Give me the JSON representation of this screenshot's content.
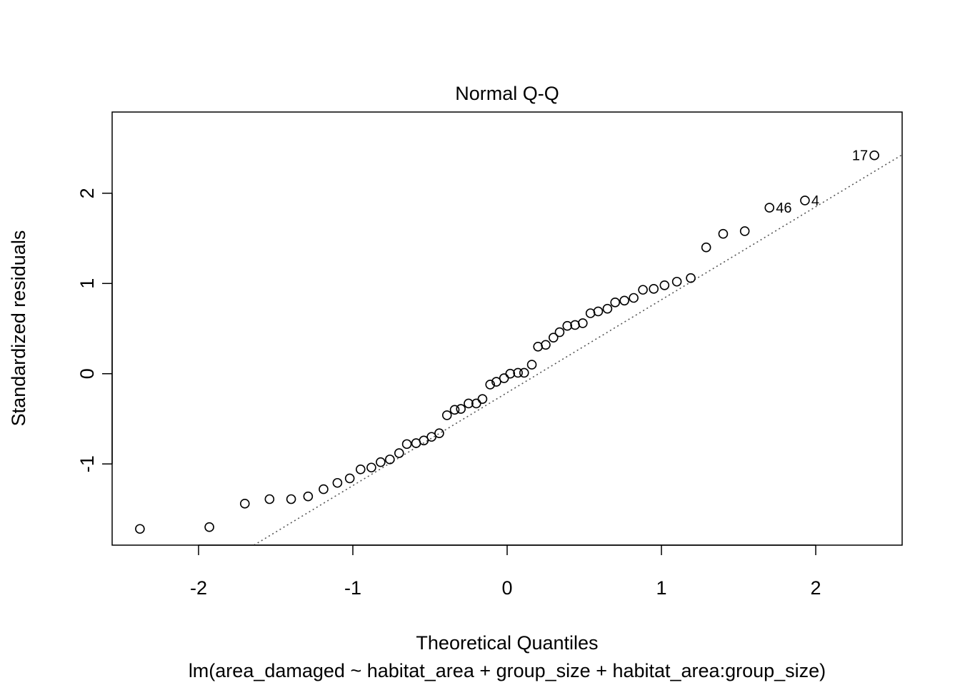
{
  "chart_data": {
    "type": "scatter",
    "title": "Normal Q-Q",
    "xlabel": "Theoretical Quantiles",
    "ylabel": "Standardized residuals",
    "subtitle": "lm(area_damaged ~ habitat_area + group_size + habitat_area:group_size)",
    "xlim": [
      -2.56,
      2.56
    ],
    "ylim": [
      -1.9,
      2.9
    ],
    "xticks": [
      -2,
      -1,
      0,
      1,
      2
    ],
    "xtick_labels": [
      "-2",
      "-1",
      "0",
      "1",
      "2"
    ],
    "yticks": [
      -1,
      0,
      1,
      2
    ],
    "ytick_labels": [
      "-1",
      "0",
      "1",
      "2"
    ],
    "reference_line": {
      "style": "dotted",
      "slope": 1.03,
      "intercept": -0.21
    },
    "points": [
      {
        "x": -2.38,
        "y": -1.72
      },
      {
        "x": -1.93,
        "y": -1.7
      },
      {
        "x": -1.7,
        "y": -1.44
      },
      {
        "x": -1.54,
        "y": -1.39
      },
      {
        "x": -1.4,
        "y": -1.39
      },
      {
        "x": -1.29,
        "y": -1.36
      },
      {
        "x": -1.19,
        "y": -1.28
      },
      {
        "x": -1.1,
        "y": -1.21
      },
      {
        "x": -1.02,
        "y": -1.16
      },
      {
        "x": -0.95,
        "y": -1.06
      },
      {
        "x": -0.88,
        "y": -1.04
      },
      {
        "x": -0.82,
        "y": -0.98
      },
      {
        "x": -0.76,
        "y": -0.95
      },
      {
        "x": -0.7,
        "y": -0.88
      },
      {
        "x": -0.65,
        "y": -0.78
      },
      {
        "x": -0.59,
        "y": -0.77
      },
      {
        "x": -0.54,
        "y": -0.74
      },
      {
        "x": -0.49,
        "y": -0.7
      },
      {
        "x": -0.44,
        "y": -0.66
      },
      {
        "x": -0.39,
        "y": -0.46
      },
      {
        "x": -0.34,
        "y": -0.4
      },
      {
        "x": -0.3,
        "y": -0.39
      },
      {
        "x": -0.25,
        "y": -0.33
      },
      {
        "x": -0.2,
        "y": -0.33
      },
      {
        "x": -0.16,
        "y": -0.28
      },
      {
        "x": -0.11,
        "y": -0.12
      },
      {
        "x": -0.07,
        "y": -0.09
      },
      {
        "x": -0.02,
        "y": -0.05
      },
      {
        "x": 0.02,
        "y": 0.0
      },
      {
        "x": 0.07,
        "y": 0.01
      },
      {
        "x": 0.11,
        "y": 0.01
      },
      {
        "x": 0.16,
        "y": 0.1
      },
      {
        "x": 0.2,
        "y": 0.3
      },
      {
        "x": 0.25,
        "y": 0.32
      },
      {
        "x": 0.3,
        "y": 0.4
      },
      {
        "x": 0.34,
        "y": 0.46
      },
      {
        "x": 0.39,
        "y": 0.53
      },
      {
        "x": 0.44,
        "y": 0.54
      },
      {
        "x": 0.49,
        "y": 0.56
      },
      {
        "x": 0.54,
        "y": 0.67
      },
      {
        "x": 0.59,
        "y": 0.69
      },
      {
        "x": 0.65,
        "y": 0.72
      },
      {
        "x": 0.7,
        "y": 0.79
      },
      {
        "x": 0.76,
        "y": 0.81
      },
      {
        "x": 0.82,
        "y": 0.84
      },
      {
        "x": 0.88,
        "y": 0.93
      },
      {
        "x": 0.95,
        "y": 0.94
      },
      {
        "x": 1.02,
        "y": 0.98
      },
      {
        "x": 1.1,
        "y": 1.02
      },
      {
        "x": 1.19,
        "y": 1.06
      },
      {
        "x": 1.29,
        "y": 1.4
      },
      {
        "x": 1.4,
        "y": 1.55
      },
      {
        "x": 1.54,
        "y": 1.58
      },
      {
        "x": 1.7,
        "y": 1.84,
        "label": "46",
        "label_side": "right"
      },
      {
        "x": 1.93,
        "y": 1.92,
        "label": "4",
        "label_side": "right"
      },
      {
        "x": 2.38,
        "y": 2.42,
        "label": "17",
        "label_side": "left"
      }
    ]
  }
}
